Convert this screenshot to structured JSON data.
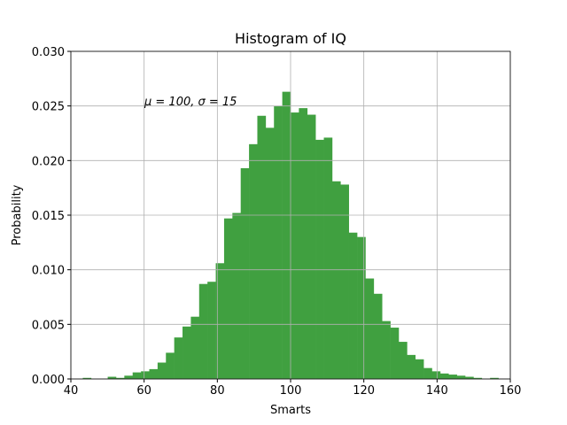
{
  "chart_data": {
    "type": "histogram",
    "title": "Histogram of IQ",
    "xlabel": "Smarts",
    "ylabel": "Probability",
    "annotation": "μ = 100,  σ = 15",
    "bins": [
      43.25,
      45.52,
      47.79,
      50.06,
      52.33,
      54.6,
      56.87,
      59.14,
      61.41,
      63.68,
      65.95,
      68.22,
      70.49,
      72.76,
      75.03,
      77.3,
      79.57,
      81.84,
      84.11,
      86.38,
      88.65,
      90.92,
      93.19,
      95.46,
      97.73,
      100.0,
      102.27,
      104.54,
      106.81,
      109.08,
      111.35,
      113.62,
      115.89,
      118.16,
      120.43,
      122.7,
      124.97,
      127.24,
      129.51,
      131.78,
      134.05,
      136.32,
      138.59,
      140.86,
      143.13,
      145.4,
      147.67,
      149.94,
      152.21,
      154.48,
      156.75
    ],
    "values": [
      0.0001,
      0.0,
      0.0,
      0.0002,
      0.0001,
      0.0003,
      0.0006,
      0.0007,
      0.0009,
      0.0015,
      0.0024,
      0.0038,
      0.0048,
      0.0057,
      0.0087,
      0.0089,
      0.0106,
      0.0147,
      0.0152,
      0.0193,
      0.0215,
      0.0241,
      0.023,
      0.025,
      0.0263,
      0.0244,
      0.0248,
      0.0242,
      0.0219,
      0.0221,
      0.0181,
      0.0178,
      0.0134,
      0.013,
      0.0092,
      0.0078,
      0.0053,
      0.0047,
      0.0034,
      0.0022,
      0.0018,
      0.001,
      0.0007,
      0.0005,
      0.0004,
      0.0003,
      0.0002,
      0.0001,
      0.0,
      0.0001
    ],
    "color": "#40a040",
    "xlim": [
      40,
      160
    ],
    "xticks": [
      40,
      60,
      80,
      100,
      120,
      140,
      160
    ],
    "ylim": [
      0,
      0.03
    ],
    "yticks": [
      {
        "value": 0,
        "label": "0.000"
      },
      {
        "value": 0.005,
        "label": "0.005"
      },
      {
        "value": 0.01,
        "label": "0.010"
      },
      {
        "value": 0.015,
        "label": "0.015"
      },
      {
        "value": 0.02,
        "label": "0.020"
      },
      {
        "value": 0.025,
        "label": "0.025"
      },
      {
        "value": 0.03,
        "label": "0.030"
      }
    ],
    "grid": true
  }
}
